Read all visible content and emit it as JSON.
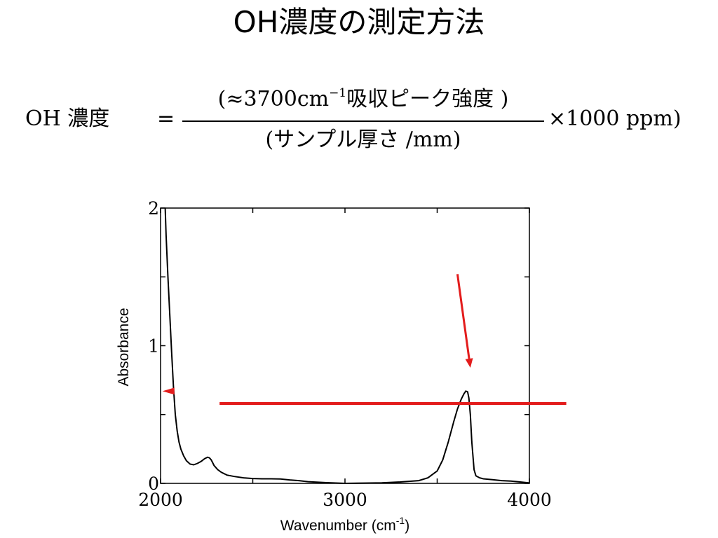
{
  "slide": {
    "title": "OH濃度の測定方法"
  },
  "formula": {
    "lhs": "OH 濃度",
    "equals": "=",
    "numerator_open": "(≈3700cm",
    "numerator_exponent": "−1",
    "numerator_close": "吸収ピーク強度 )",
    "denominator": "(サンプル厚さ /mm)",
    "multiplier": "×1000 ppm)"
  },
  "colors": {
    "annotation": "#e31c1c",
    "curve": "#000000"
  },
  "chart_data": {
    "type": "line",
    "xlabel": "Wavenumber (cm",
    "xlabel_exponent": "-1",
    "xlabel_close": ")",
    "ylabel": "Absorbance",
    "xlim": [
      2000,
      4000
    ],
    "ylim": [
      0,
      2
    ],
    "xticks": [
      2000,
      3000,
      4000
    ],
    "yticks": [
      0,
      1,
      2
    ],
    "x_minor_ticks": [
      2000,
      2500,
      3000,
      3500,
      4000
    ],
    "y_minor_ticks": [
      0,
      0.5,
      1,
      1.5,
      2
    ],
    "grid": false,
    "series": [
      {
        "x": [
          2025,
          2030,
          2040,
          2050,
          2060,
          2070,
          2080,
          2090,
          2100,
          2110,
          2125,
          2140,
          2160,
          2180,
          2200,
          2220,
          2240,
          2255,
          2265,
          2275,
          2290,
          2310,
          2330,
          2360,
          2400,
          2450,
          2500,
          2550,
          2600,
          2650,
          2700,
          2750,
          2800,
          2900,
          3000,
          3100,
          3200,
          3300,
          3400,
          3450,
          3500,
          3530,
          3560,
          3590,
          3610,
          3630,
          3645,
          3655,
          3665,
          3672,
          3680,
          3688,
          3700,
          3710,
          3730,
          3750,
          3800,
          3850,
          3900,
          3950,
          4000
        ],
        "y": [
          2.0,
          1.8,
          1.5,
          1.22,
          0.95,
          0.7,
          0.5,
          0.38,
          0.3,
          0.25,
          0.2,
          0.165,
          0.14,
          0.135,
          0.145,
          0.16,
          0.18,
          0.19,
          0.185,
          0.17,
          0.13,
          0.1,
          0.08,
          0.06,
          0.05,
          0.04,
          0.035,
          0.033,
          0.033,
          0.032,
          0.025,
          0.02,
          0.012,
          0.005,
          0.0,
          0.002,
          0.004,
          0.01,
          0.02,
          0.04,
          0.09,
          0.17,
          0.3,
          0.45,
          0.54,
          0.61,
          0.65,
          0.67,
          0.665,
          0.62,
          0.5,
          0.3,
          0.1,
          0.055,
          0.04,
          0.033,
          0.027,
          0.02,
          0.017,
          0.01,
          0.003
        ]
      }
    ],
    "annotations": {
      "baseline": {
        "x": [
          2320,
          4200
        ],
        "y": 0.58
      },
      "peak_marker": {
        "x": 2075,
        "y": 0.67
      },
      "arrow": {
        "from": [
          3610,
          1.52
        ],
        "to": [
          3680,
          0.84
        ]
      }
    }
  }
}
